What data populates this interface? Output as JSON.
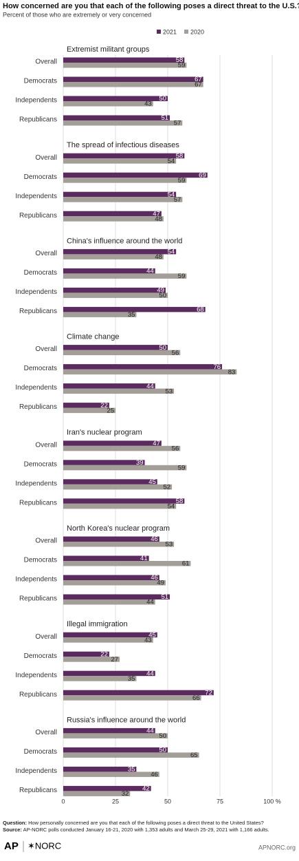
{
  "chart_data": {
    "type": "grouped-hbar",
    "title": "How concerned are you that each of the following poses a direct threat to the U.S.?",
    "subtitle": "Percent of those who are extremely or very concerned",
    "categories": [
      "Overall",
      "Democrats",
      "Independents",
      "Republicans"
    ],
    "series": [
      {
        "name": "2021",
        "color": "#5b2a5e"
      },
      {
        "name": "2020",
        "color": "#a39e98"
      }
    ],
    "panels": [
      {
        "title": "Extremist militant groups",
        "series": [
          {
            "values": [
              58,
              67,
              50,
              51
            ]
          },
          {
            "values": [
              59,
              67,
              43,
              57
            ]
          }
        ]
      },
      {
        "title": "The spread of infectious diseases",
        "series": [
          {
            "values": [
              58,
              69,
              54,
              47
            ]
          },
          {
            "values": [
              54,
              59,
              57,
              48
            ]
          }
        ]
      },
      {
        "title": "China's influence around the world",
        "series": [
          {
            "values": [
              54,
              44,
              49,
              68
            ]
          },
          {
            "values": [
              48,
              59,
              50,
              35
            ]
          }
        ]
      },
      {
        "title": "Climate change",
        "series": [
          {
            "values": [
              50,
              76,
              44,
              22
            ]
          },
          {
            "values": [
              56,
              83,
              53,
              25
            ]
          }
        ]
      },
      {
        "title": "Iran's nuclear program",
        "series": [
          {
            "values": [
              47,
              39,
              45,
              58
            ]
          },
          {
            "values": [
              56,
              59,
              52,
              54
            ]
          }
        ]
      },
      {
        "title": "North Korea's nuclear program",
        "series": [
          {
            "values": [
              46,
              41,
              46,
              51
            ]
          },
          {
            "values": [
              53,
              61,
              49,
              44
            ]
          }
        ]
      },
      {
        "title": "Illegal immigration",
        "series": [
          {
            "values": [
              45,
              22,
              44,
              72
            ]
          },
          {
            "values": [
              43,
              27,
              35,
              66
            ]
          }
        ]
      },
      {
        "title": "Russia's influence around the world",
        "series": [
          {
            "values": [
              44,
              50,
              35,
              42
            ]
          },
          {
            "values": [
              50,
              65,
              46,
              32
            ]
          }
        ]
      }
    ],
    "xlim": [
      0,
      100
    ],
    "xticks": [
      0,
      25,
      50,
      75,
      {
        "value": 100,
        "label": "100 %"
      }
    ],
    "grid": true
  },
  "footer": {
    "question_label": "Question:",
    "question": "How personally concerned are you that each of the following poses a direct threat to the United States?",
    "source_label": "Source:",
    "source": "AP-NORC polls conducted January 16-21, 2020 with 1,353 adults and March 25-29, 2021 with 1,166 adults.",
    "logo_ap": "AP",
    "logo_norc": "✶NORC",
    "site": "APNORC.org"
  }
}
